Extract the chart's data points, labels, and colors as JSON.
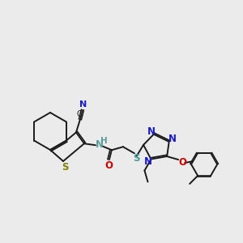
{
  "bg_color": "#ebebeb",
  "figsize": [
    3.0,
    3.0
  ],
  "dpi": 100,
  "colors": {
    "black": "#1a1a1a",
    "S": "#808000",
    "S2": "#4a9a9a",
    "N": "#1a1acd",
    "O": "#cd0000",
    "H": "#5a9a9a"
  }
}
